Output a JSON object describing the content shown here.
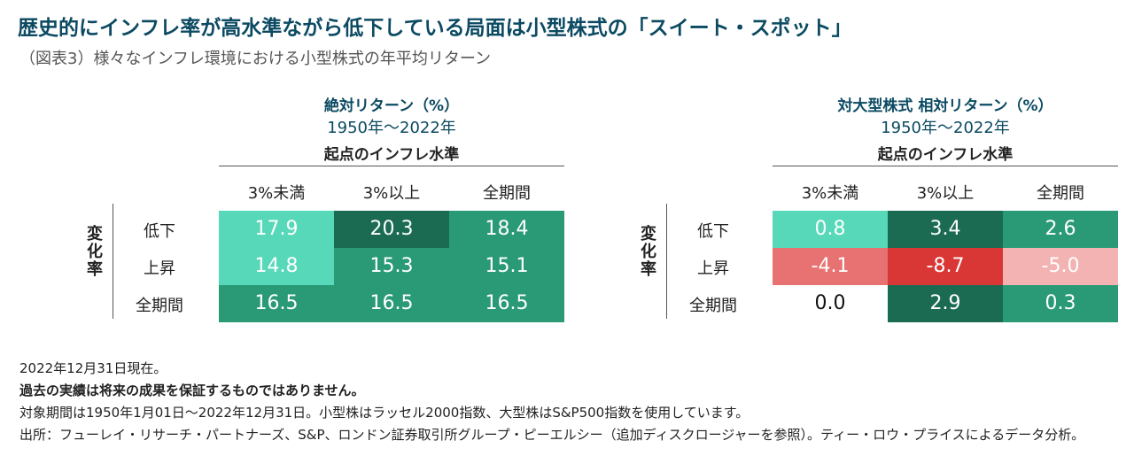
{
  "title": "歴史的にインフレ率が高水準ながら低下している局面は小型株式の「スイート・スポット」",
  "subtitle": "（図表3）様々なインフレ環境における小型株式の年平均リターン",
  "tables": [
    {
      "title": "絶対リターン（%）",
      "period": "1950年～2022年",
      "column_group": "起点のインフレ水準",
      "columns": [
        "3%未満",
        "3%以上",
        "全期間"
      ],
      "row_group": "変化率",
      "rows": [
        {
          "label": "低下",
          "cells": [
            "17.9",
            "20.3",
            "18.4"
          ],
          "colors": [
            "#56d8b9",
            "#1b6b52",
            "#2a9a76"
          ]
        },
        {
          "label": "上昇",
          "cells": [
            "14.8",
            "15.3",
            "15.1"
          ],
          "colors": [
            "#56d8b9",
            "#2a9a76",
            "#2a9a76"
          ]
        },
        {
          "label": "全期間",
          "cells": [
            "16.5",
            "16.5",
            "16.5"
          ],
          "colors": [
            "#2a9a76",
            "#2a9a76",
            "#2a9a76"
          ]
        }
      ]
    },
    {
      "title": "対大型株式 相対リターン（%）",
      "period": "1950年～2022年",
      "column_group": "起点のインフレ水準",
      "columns": [
        "3%未満",
        "3%以上",
        "全期間"
      ],
      "row_group": "変化率",
      "rows": [
        {
          "label": "低下",
          "cells": [
            "0.8",
            "3.4",
            "2.6"
          ],
          "colors": [
            "#56d8b9",
            "#1b6b52",
            "#2a9a76"
          ]
        },
        {
          "label": "上昇",
          "cells": [
            "-4.1",
            "-8.7",
            "-5.0"
          ],
          "colors": [
            "#e77271",
            "#d93636",
            "#f3b3b2"
          ]
        },
        {
          "label": "全期間",
          "cells": [
            "0.0",
            "2.9",
            "0.3"
          ],
          "colors": [
            "#ffffff",
            "#1b6b52",
            "#2a9a76"
          ]
        }
      ]
    }
  ],
  "notes": [
    "2022年12月31日現在。",
    "過去の実績は将来の成果を保証するものではありません。",
    "対象期間は1950年1月01日～2022年12月31日。小型株はラッセル2000指数、大型株はS&P500指数を使用しています。",
    "出所：フューレイ・リサーチ・パートナーズ、S&P、ロンドン証券取引所グループ・ピーエルシー（追加ディスクロージャーを参照）。ティー・ロウ・プライスによるデータ分析。"
  ]
}
